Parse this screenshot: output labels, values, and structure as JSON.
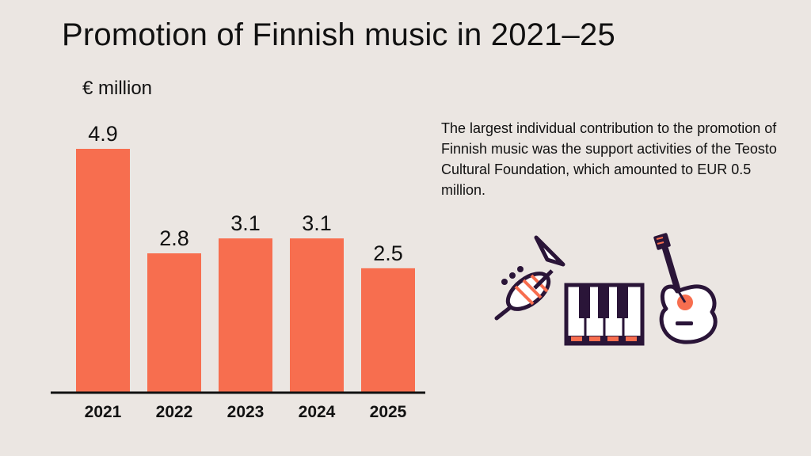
{
  "title": "Promotion of Finnish music in 2021–25",
  "unit_label": "€ million",
  "note": "The largest individual contribution to the promotion of Finnish music was the support activities of the Teosto Cultural Foundation, which amounted to EUR 0.5 million.",
  "colors": {
    "bar": "#f76e4f",
    "axis": "#111111",
    "background": "#ebe6e2",
    "icon_outline": "#2a1538",
    "icon_accent": "#f76e4f",
    "icon_fill": "#ffffff"
  },
  "icons": [
    "trumpet-icon",
    "piano-keys-icon",
    "guitar-icon"
  ],
  "chart_data": {
    "type": "bar",
    "categories": [
      "2021",
      "2022",
      "2023",
      "2024",
      "2025"
    ],
    "values": [
      4.9,
      2.8,
      3.1,
      3.1,
      2.5
    ],
    "data_labels": [
      "4.9",
      "2.8",
      "3.1",
      "3.1",
      "2.5"
    ],
    "title": "Promotion of Finnish music in 2021–25",
    "ylabel": "€ million",
    "xlabel": "",
    "ylim": [
      0,
      4.9
    ],
    "grid": false
  }
}
